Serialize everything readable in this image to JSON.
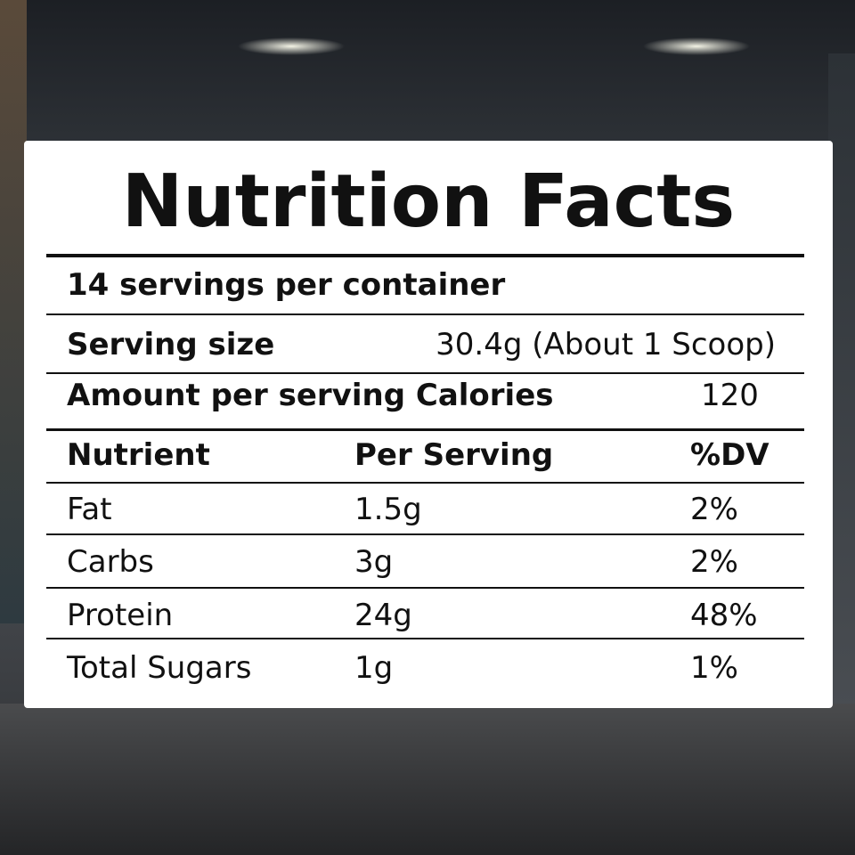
{
  "title": "Nutrition Facts",
  "servings_per_container": "14 servings per container",
  "serving_size": {
    "label": "Serving size",
    "value": "30.4g (About 1 Scoop)"
  },
  "calories": {
    "label": "Amount per serving Calories",
    "value": "120"
  },
  "table": {
    "header": [
      "Nutrient",
      "Per Serving",
      "%DV"
    ],
    "rows": [
      [
        "Fat",
        "1.5g",
        "2%"
      ],
      [
        "Carbs",
        "3g",
        "2%"
      ],
      [
        "Protein",
        "24g",
        "48%"
      ],
      [
        "Total Sugars",
        "1g",
        "1%"
      ]
    ]
  }
}
